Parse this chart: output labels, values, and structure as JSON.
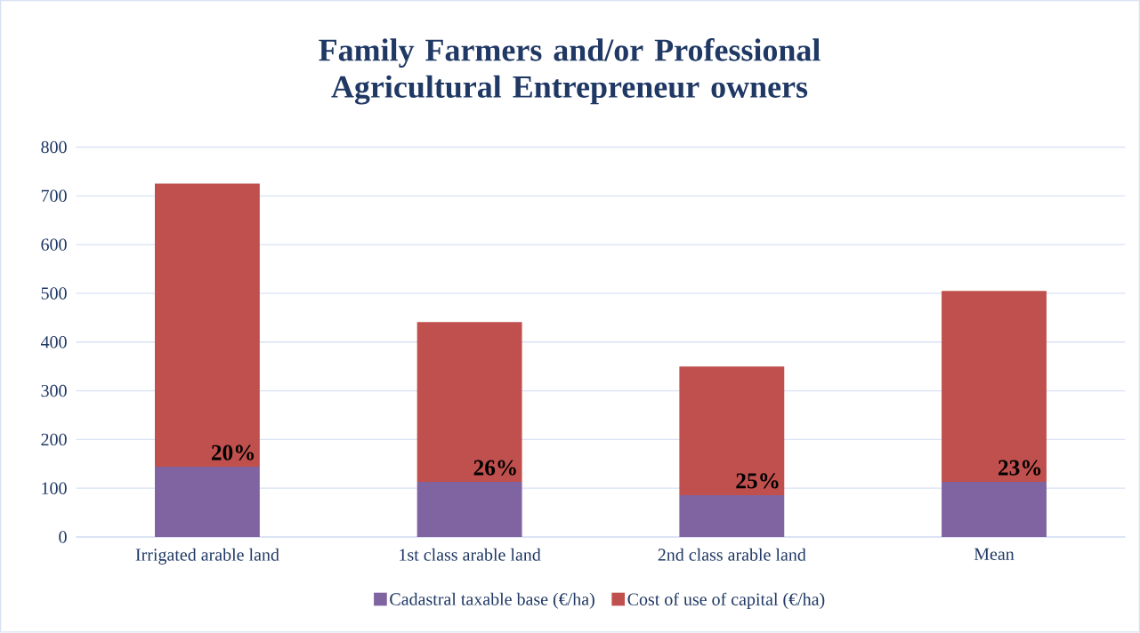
{
  "chart_data": {
    "type": "bar",
    "title": "Family Farmers and/or Professional Agricultural Entrepreneur owners",
    "categories": [
      "Irrigated arable land",
      "1st class arable land",
      "2nd class arable land",
      "Mean"
    ],
    "stacked": true,
    "series": [
      {
        "name": "Cadastral taxable base (€/ha)",
        "color": "#8064a2",
        "values": [
          144,
          113,
          86,
          113
        ]
      },
      {
        "name": "Cost of use of capital (€/ha)",
        "color": "#c0504d",
        "values": [
          581,
          328,
          264,
          392
        ]
      }
    ],
    "ylim": [
      0,
      800
    ],
    "yticks": [
      0,
      100,
      200,
      300,
      400,
      500,
      600,
      700,
      800
    ],
    "grid": "y",
    "legend": "bottom",
    "annotations": [
      "20%",
      "26%",
      "25%",
      "23%"
    ]
  }
}
